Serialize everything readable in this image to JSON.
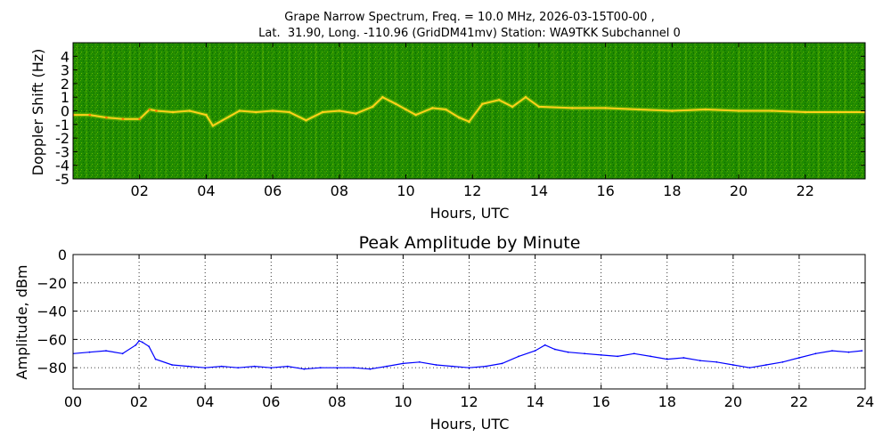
{
  "chart_data": [
    {
      "type": "heatmap",
      "title": "Grape Narrow Spectrum, Freq. = 10.0 MHz, 2026-03-15T00-00 ,",
      "subtitle": "Lat.  31.90, Long. -110.96 (GridDM41mv) Station: WA9TKK Subchannel 0",
      "xlabel": "Hours, UTC",
      "ylabel": "Doppler Shift (Hz)",
      "xlim": [
        0,
        23.8
      ],
      "ylim": [
        -5,
        5
      ],
      "x_ticks": [
        2,
        4,
        6,
        8,
        10,
        12,
        14,
        16,
        18,
        20,
        22
      ],
      "x_tick_labels": [
        "02",
        "04",
        "06",
        "08",
        "10",
        "12",
        "14",
        "16",
        "18",
        "20",
        "22"
      ],
      "y_ticks": [
        4,
        3,
        2,
        1,
        0,
        -1,
        -2,
        -3,
        -4,
        -5
      ],
      "y_tick_labels": [
        "4",
        "3",
        "2",
        "1",
        "0",
        "-1",
        "-2",
        "-3",
        "-4",
        "-5"
      ],
      "colors": {
        "background": "#1f8a00",
        "mid": "#5fb000",
        "trace": "#ffd21a",
        "peak": "#ff7a00"
      },
      "trace": {
        "x": [
          0,
          0.5,
          1.0,
          1.5,
          2.0,
          2.3,
          2.5,
          3.0,
          3.5,
          4.0,
          4.2,
          5.0,
          5.5,
          6.0,
          6.5,
          7.0,
          7.5,
          8.0,
          8.5,
          9.0,
          9.3,
          9.7,
          10.0,
          10.3,
          10.8,
          11.2,
          11.6,
          11.9,
          12.3,
          12.8,
          13.2,
          13.6,
          14.0,
          15.0,
          16.0,
          17.0,
          18.0,
          19.0,
          20.0,
          21.0,
          22.0,
          23.0,
          23.8
        ],
        "y": [
          -0.3,
          -0.3,
          -0.5,
          -0.6,
          -0.6,
          0.1,
          0.0,
          -0.1,
          0.0,
          -0.3,
          -1.1,
          0.0,
          -0.1,
          0.0,
          -0.1,
          -0.7,
          -0.1,
          0.0,
          -0.2,
          0.3,
          1.0,
          0.5,
          0.1,
          -0.3,
          0.2,
          0.1,
          -0.5,
          -0.8,
          0.5,
          0.8,
          0.3,
          1.0,
          0.3,
          0.2,
          0.2,
          0.1,
          0.0,
          0.1,
          0.0,
          0.0,
          -0.1,
          -0.1,
          -0.1
        ]
      }
    },
    {
      "type": "line",
      "title": "Peak Amplitude by Minute",
      "xlabel": "Hours, UTC",
      "ylabel": "Amplitude, dBm",
      "xlim": [
        0,
        24
      ],
      "ylim": [
        -95,
        0
      ],
      "grid": true,
      "x_ticks": [
        0,
        2,
        4,
        6,
        8,
        10,
        12,
        14,
        16,
        18,
        20,
        22,
        24
      ],
      "x_tick_labels": [
        "00",
        "02",
        "04",
        "06",
        "08",
        "10",
        "12",
        "14",
        "16",
        "18",
        "20",
        "22",
        "24"
      ],
      "y_ticks": [
        0,
        -20,
        -40,
        -60,
        -80
      ],
      "y_tick_labels": [
        "0",
        "−20",
        "−40",
        "−60",
        "−80"
      ],
      "color": "#0000ff",
      "series": [
        {
          "x": [
            0.0,
            0.5,
            1.0,
            1.5,
            1.9,
            2.0,
            2.1,
            2.3,
            2.5,
            3.0,
            3.5,
            4.0,
            4.5,
            5.0,
            5.5,
            6.0,
            6.5,
            7.0,
            7.5,
            8.0,
            8.5,
            9.0,
            9.5,
            10.0,
            10.5,
            11.0,
            11.5,
            12.0,
            12.5,
            13.0,
            13.5,
            14.0,
            14.3,
            14.6,
            15.0,
            15.5,
            16.0,
            16.5,
            17.0,
            17.5,
            18.0,
            18.5,
            19.0,
            19.5,
            20.0,
            20.5,
            21.0,
            21.5,
            22.0,
            22.5,
            23.0,
            23.5,
            23.9
          ],
          "y": [
            -70,
            -69,
            -68,
            -70,
            -64,
            -61,
            -62,
            -65,
            -74,
            -78,
            -79,
            -80,
            -79,
            -80,
            -79,
            -80,
            -79,
            -81,
            -80,
            -80,
            -80,
            -81,
            -79,
            -77,
            -76,
            -78,
            -79,
            -80,
            -79,
            -77,
            -72,
            -68,
            -64,
            -67,
            -69,
            -70,
            -71,
            -72,
            -70,
            -72,
            -74,
            -73,
            -75,
            -76,
            -78,
            -80,
            -78,
            -76,
            -73,
            -70,
            -68,
            -69,
            -68
          ]
        }
      ]
    }
  ]
}
